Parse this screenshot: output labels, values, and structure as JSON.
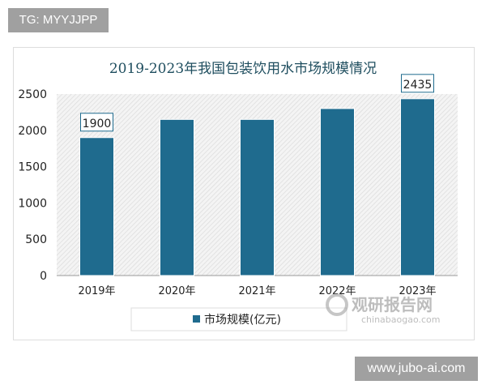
{
  "tag_label": "TG: MYYJJPP",
  "watermark_url": "www.jubo-ai.com",
  "logo": {
    "cn": "观研报告网",
    "en": "chinabaogao.com"
  },
  "chart_data": {
    "type": "bar",
    "title": "2019-2023年我国包装饮用水市场规模情况",
    "categories": [
      "2019年",
      "2020年",
      "2021年",
      "2022年",
      "2023年"
    ],
    "series": [
      {
        "name": "市场规模(亿元)",
        "values": [
          1900,
          2150,
          2150,
          2300,
          2435
        ],
        "color": "#1f6b8e"
      }
    ],
    "data_labels": {
      "0": "1900",
      "4": "2435"
    },
    "yticks": [
      "0",
      "500",
      "1000",
      "1500",
      "2000",
      "2500"
    ],
    "ylim": [
      0,
      2500
    ],
    "legend": "bottom",
    "background": "hatched"
  }
}
